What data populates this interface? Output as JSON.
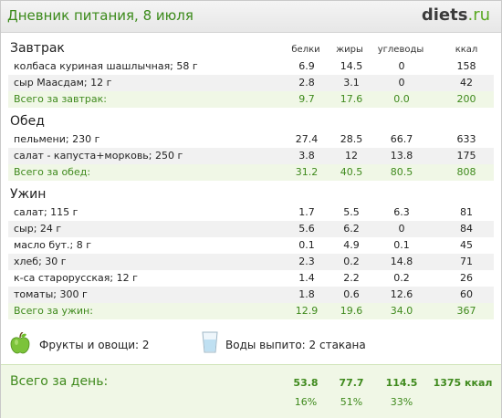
{
  "header": {
    "title": "Дневник питания, 8 июля",
    "logo_main": "diets",
    "logo_suffix": ".ru"
  },
  "columns": [
    "белки",
    "жиры",
    "углеводы",
    "ккал"
  ],
  "meals": [
    {
      "title": "Завтрак",
      "items": [
        {
          "name": "колбаса куриная шашлычная; 58 г",
          "protein": "6.9",
          "fat": "14.5",
          "carbs": "0",
          "kcal": "158"
        },
        {
          "name": "сыр Маасдам; 12 г",
          "protein": "2.8",
          "fat": "3.1",
          "carbs": "0",
          "kcal": "42"
        }
      ],
      "total": {
        "name": "Всего за завтрак:",
        "protein": "9.7",
        "fat": "17.6",
        "carbs": "0.0",
        "kcal": "200"
      }
    },
    {
      "title": "Обед",
      "items": [
        {
          "name": "пельмени; 230 г",
          "protein": "27.4",
          "fat": "28.5",
          "carbs": "66.7",
          "kcal": "633"
        },
        {
          "name": "салат - капуста+морковь; 250 г",
          "protein": "3.8",
          "fat": "12",
          "carbs": "13.8",
          "kcal": "175"
        }
      ],
      "total": {
        "name": "Всего за обед:",
        "protein": "31.2",
        "fat": "40.5",
        "carbs": "80.5",
        "kcal": "808"
      }
    },
    {
      "title": "Ужин",
      "items": [
        {
          "name": "салат; 115 г",
          "protein": "1.7",
          "fat": "5.5",
          "carbs": "6.3",
          "kcal": "81"
        },
        {
          "name": "сыр; 24 г",
          "protein": "5.6",
          "fat": "6.2",
          "carbs": "0",
          "kcal": "84"
        },
        {
          "name": "масло бут.; 8 г",
          "protein": "0.1",
          "fat": "4.9",
          "carbs": "0.1",
          "kcal": "45"
        },
        {
          "name": "хлеб; 30 г",
          "protein": "2.3",
          "fat": "0.2",
          "carbs": "14.8",
          "kcal": "71"
        },
        {
          "name": "к-са старорусская; 12 г",
          "protein": "1.4",
          "fat": "2.2",
          "carbs": "0.2",
          "kcal": "26"
        },
        {
          "name": "томаты; 300 г",
          "protein": "1.8",
          "fat": "0.6",
          "carbs": "12.6",
          "kcal": "60"
        }
      ],
      "total": {
        "name": "Всего за ужин:",
        "protein": "12.9",
        "fat": "19.6",
        "carbs": "34.0",
        "kcal": "367"
      }
    }
  ],
  "summary": {
    "fruits_label": "Фрукты и овощи: 2",
    "water_label": "Воды выпито: 2 стакана",
    "icon_fruit": "apple-icon",
    "icon_water": "glass-icon"
  },
  "day_total": {
    "title": "Всего за день:",
    "protein": "53.8",
    "fat": "77.7",
    "carbs": "114.5",
    "kcal": "1375 ккал",
    "protein_pct": "16%",
    "fat_pct": "51%",
    "carbs_pct": "33%"
  },
  "colors": {
    "accent_green": "#3f8a1d",
    "total_row_bg": "#f0f7e6",
    "alt_row_bg": "#f1f1f1"
  }
}
